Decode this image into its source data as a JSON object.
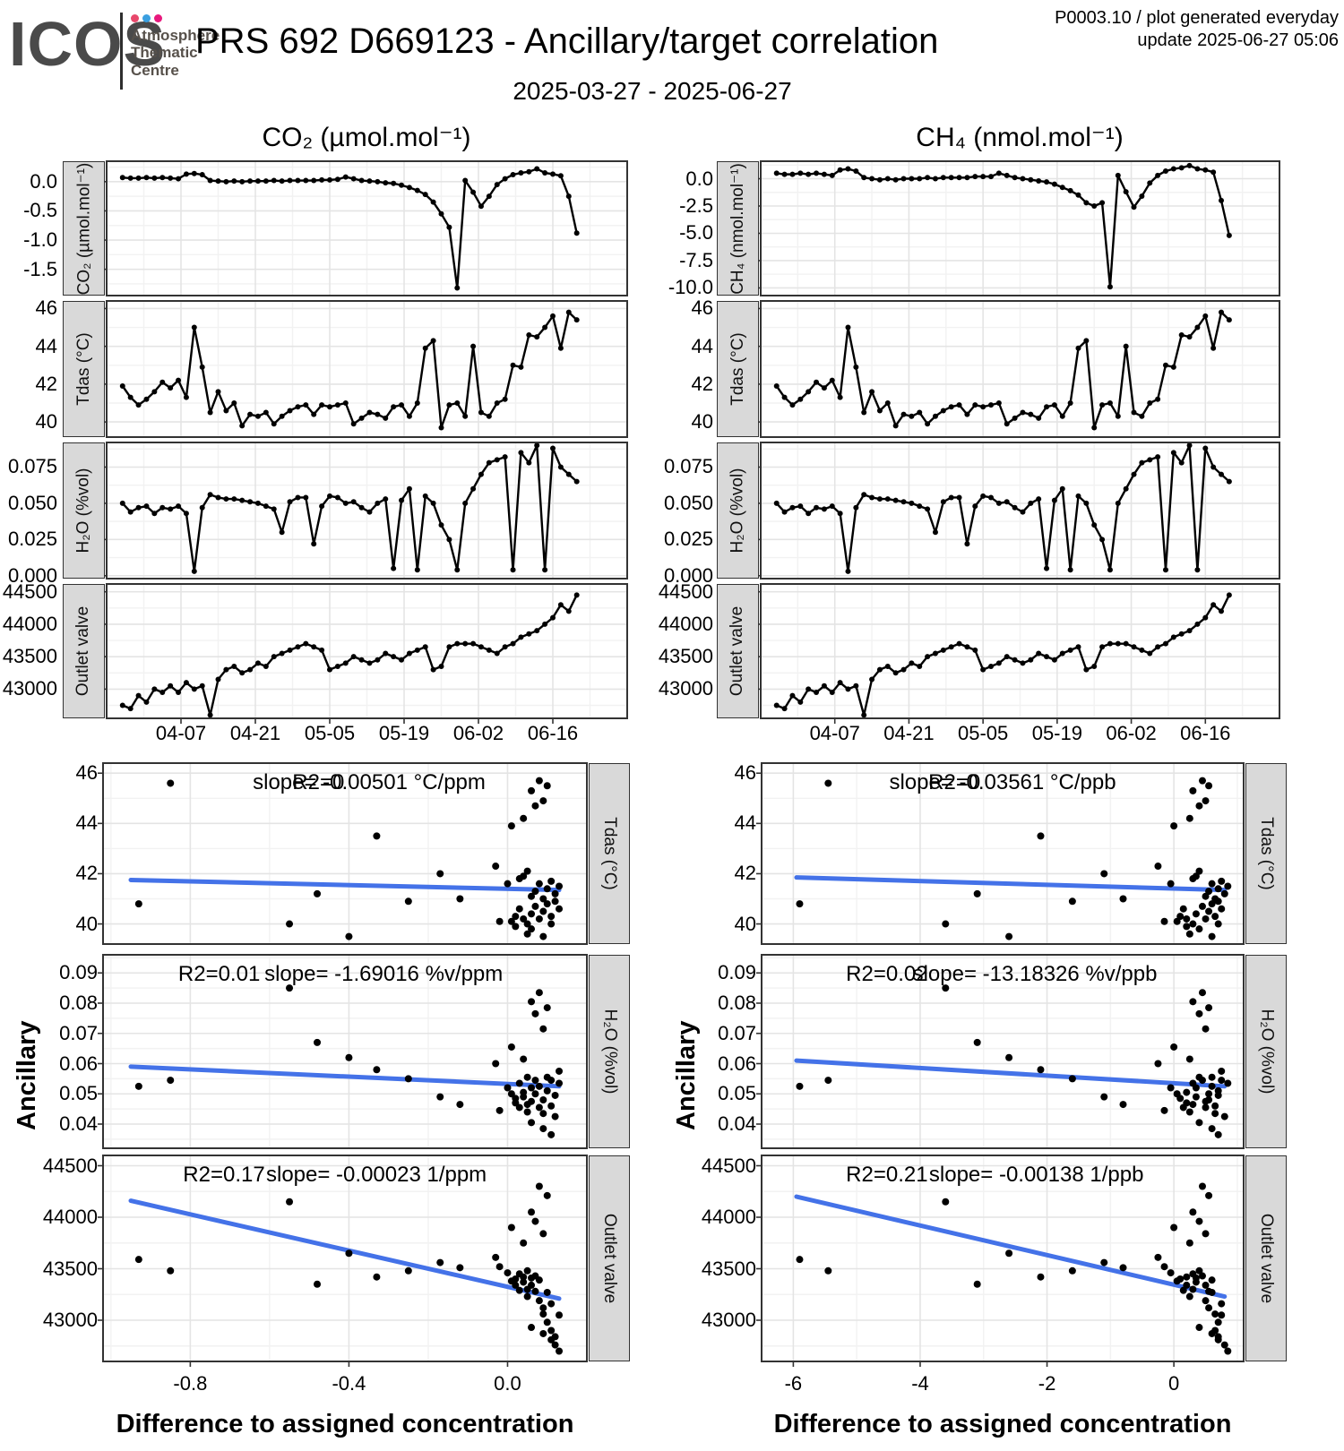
{
  "header": {
    "logo_text": "ICOS",
    "logo_sub": [
      "Atmosphere",
      "Thematic",
      "Centre"
    ],
    "logo_dot_colors": [
      "#e8486b",
      "#3a9fe0",
      "#e8197d"
    ],
    "title": "PRS 692 D669123 - Ancillary/target correlation",
    "meta_line1": "P0003.10 / plot generated everyday",
    "meta_line2": "update  2025-06-27 05:06",
    "date_range": "2025-03-27 - 2025-06-27"
  },
  "titles": {
    "left_column": "CO₂ (µmol.mol⁻¹)",
    "right_column": "CH₄ (nmol.mol⁻¹)",
    "scatter_y_axis": "Ancillary",
    "scatter_x_axis": "Difference to assigned concentration"
  },
  "colors": {
    "regression_line": "#4472e8",
    "series": "#000000",
    "strip_bg": "#d9d9d9",
    "grid_major": "#e4e4e4",
    "grid_minor": "#f2f2f2",
    "frame": "#333333"
  },
  "chart_data": {
    "type": [
      "line",
      "scatter"
    ],
    "time_x": {
      "lim": [
        -3,
        95
      ],
      "ticks": [
        11,
        25,
        39,
        53,
        67,
        81
      ],
      "tick_labels": [
        "04-07",
        "04-21",
        "05-05",
        "05-19",
        "06-02",
        "06-16"
      ],
      "minor": [
        4,
        18,
        32,
        46,
        60,
        74,
        88
      ]
    },
    "series": {
      "days": [
        0,
        1.5,
        3,
        4.5,
        6,
        7.5,
        9,
        10.5,
        12,
        13.5,
        15,
        16.5,
        18,
        19.5,
        21,
        22.5,
        24,
        25.5,
        27,
        28.5,
        30,
        31.5,
        33,
        34.5,
        36,
        37.5,
        39,
        40.5,
        42,
        43.5,
        45,
        46.5,
        48,
        49.5,
        51,
        52.5,
        54,
        55.5,
        57,
        58.5,
        60,
        61.5,
        63,
        64.5,
        66,
        67.5,
        69,
        70.5,
        72,
        73.5,
        75,
        76.5,
        78,
        79.5,
        81,
        82.5,
        84,
        85.5
      ],
      "co2": [
        0.07,
        0.06,
        0.06,
        0.07,
        0.06,
        0.07,
        0.06,
        0.05,
        0.13,
        0.14,
        0.12,
        0.02,
        0.01,
        0.0,
        0.01,
        0.0,
        0.01,
        0.01,
        0.01,
        0.02,
        0.01,
        0.02,
        0.02,
        0.02,
        0.02,
        0.03,
        0.03,
        0.04,
        0.08,
        0.05,
        0.02,
        0.01,
        0.0,
        -0.02,
        -0.03,
        -0.06,
        -0.1,
        -0.15,
        -0.22,
        -0.35,
        -0.55,
        -0.78,
        -1.82,
        0.02,
        -0.18,
        -0.42,
        -0.25,
        -0.05,
        0.05,
        0.12,
        0.15,
        0.17,
        0.22,
        0.15,
        0.13,
        0.1,
        -0.25,
        -0.88
      ],
      "ch4": [
        0.5,
        0.4,
        0.4,
        0.5,
        0.4,
        0.5,
        0.4,
        0.3,
        0.8,
        0.9,
        0.7,
        0.1,
        0.0,
        -0.1,
        0.0,
        -0.1,
        0.0,
        0.0,
        0.0,
        0.1,
        0.0,
        0.1,
        0.1,
        0.1,
        0.1,
        0.2,
        0.2,
        0.2,
        0.5,
        0.3,
        0.1,
        0.0,
        -0.1,
        -0.2,
        -0.3,
        -0.5,
        -0.8,
        -1.1,
        -1.5,
        -2.2,
        -2.5,
        -2.2,
        -9.9,
        0.3,
        -1.2,
        -2.6,
        -1.6,
        -0.4,
        0.3,
        0.7,
        0.9,
        1.0,
        1.2,
        0.9,
        0.8,
        0.6,
        -2.0,
        -5.2
      ],
      "tdas": [
        41.9,
        41.3,
        40.9,
        41.2,
        41.6,
        42.1,
        41.8,
        42.2,
        41.3,
        45.0,
        42.9,
        40.5,
        41.6,
        40.6,
        41.0,
        39.8,
        40.4,
        40.3,
        40.5,
        39.9,
        40.3,
        40.6,
        40.8,
        40.9,
        40.4,
        40.9,
        40.8,
        40.9,
        41.0,
        39.9,
        40.2,
        40.5,
        40.4,
        40.2,
        40.8,
        40.9,
        40.3,
        41.0,
        43.9,
        44.3,
        39.7,
        40.9,
        41.0,
        40.3,
        44.0,
        40.5,
        40.3,
        41.0,
        41.2,
        43.0,
        42.9,
        44.6,
        44.5,
        45.0,
        45.6,
        43.9,
        45.8,
        45.4
      ],
      "h2o": [
        0.05,
        0.044,
        0.047,
        0.048,
        0.043,
        0.047,
        0.046,
        0.048,
        0.043,
        0.003,
        0.047,
        0.056,
        0.054,
        0.053,
        0.053,
        0.052,
        0.051,
        0.05,
        0.048,
        0.046,
        0.03,
        0.051,
        0.054,
        0.054,
        0.022,
        0.048,
        0.055,
        0.054,
        0.05,
        0.051,
        0.047,
        0.044,
        0.05,
        0.053,
        0.005,
        0.052,
        0.06,
        0.004,
        0.055,
        0.05,
        0.035,
        0.025,
        0.004,
        0.05,
        0.06,
        0.07,
        0.078,
        0.08,
        0.082,
        0.004,
        0.085,
        0.078,
        0.09,
        0.004,
        0.088,
        0.075,
        0.07,
        0.065
      ],
      "valve": [
        42750,
        42700,
        42900,
        42800,
        43000,
        42950,
        43050,
        42950,
        43100,
        43000,
        43050,
        42600,
        43150,
        43300,
        43350,
        43250,
        43300,
        43400,
        43350,
        43500,
        43550,
        43600,
        43650,
        43700,
        43650,
        43600,
        43300,
        43350,
        43400,
        43500,
        43450,
        43400,
        43450,
        43550,
        43500,
        43450,
        43550,
        43600,
        43650,
        43300,
        43350,
        43650,
        43700,
        43700,
        43700,
        43650,
        43600,
        43550,
        43650,
        43700,
        43800,
        43850,
        43900,
        44000,
        44100,
        44300,
        44200,
        44450
      ]
    },
    "ts_panels": [
      {
        "kind": "ts",
        "col": 0,
        "row": 0,
        "ykey": "co2",
        "strip": "CO₂ (µmol.mol⁻¹)",
        "ylim": [
          -1.95,
          0.35
        ],
        "yticks": [
          0,
          -0.5,
          -1,
          -1.5
        ],
        "ylabels": [
          "0.0",
          "-0.5",
          "-1.0",
          "-1.5"
        ]
      },
      {
        "kind": "ts",
        "col": 0,
        "row": 1,
        "ykey": "tdas",
        "strip": "Tdas (°C)",
        "ylim": [
          39.2,
          46.4
        ],
        "yticks": [
          46,
          44,
          42,
          40
        ],
        "ylabels": [
          "46",
          "44",
          "42",
          "40"
        ]
      },
      {
        "kind": "ts",
        "col": 0,
        "row": 2,
        "ykey": "h2o",
        "strip": "H₂O (%vol)",
        "ylim": [
          -0.002,
          0.092
        ],
        "yticks": [
          0.075,
          0.05,
          0.025,
          0
        ],
        "ylabels": [
          "0.075",
          "0.050",
          "0.025",
          "0.000"
        ]
      },
      {
        "kind": "ts",
        "col": 0,
        "row": 3,
        "ykey": "valve",
        "strip": "Outlet valve",
        "ylim": [
          42550,
          44620
        ],
        "yticks": [
          44500,
          44000,
          43500,
          43000
        ],
        "ylabels": [
          "44500",
          "44000",
          "43500",
          "43000"
        ]
      },
      {
        "kind": "ts",
        "col": 1,
        "row": 0,
        "ykey": "ch4",
        "strip": "CH₄ (nmol.mol⁻¹)",
        "ylim": [
          -10.7,
          1.6
        ],
        "yticks": [
          0,
          -2.5,
          -5,
          -7.5,
          -10
        ],
        "ylabels": [
          "0.0",
          "-2.5",
          "-5.0",
          "-7.5",
          "-10.0"
        ]
      },
      {
        "kind": "ts",
        "col": 1,
        "row": 1,
        "ykey": "tdas",
        "strip": "Tdas (°C)",
        "ylim": [
          39.2,
          46.4
        ],
        "yticks": [
          46,
          44,
          42,
          40
        ],
        "ylabels": [
          "46",
          "44",
          "42",
          "40"
        ]
      },
      {
        "kind": "ts",
        "col": 1,
        "row": 2,
        "ykey": "h2o",
        "strip": "H₂O (%vol)",
        "ylim": [
          -0.002,
          0.092
        ],
        "yticks": [
          0.075,
          0.05,
          0.025,
          0
        ],
        "ylabels": [
          "0.075",
          "0.050",
          "0.025",
          "0.000"
        ]
      },
      {
        "kind": "ts",
        "col": 1,
        "row": 3,
        "ykey": "valve",
        "strip": "Outlet valve",
        "ylim": [
          42550,
          44620
        ],
        "yticks": [
          44500,
          44000,
          43500,
          43000
        ],
        "ylabels": [
          "44500",
          "44000",
          "43500",
          "43000"
        ]
      }
    ],
    "scatter_x": [
      {
        "lim": [
          -1.02,
          0.2
        ],
        "ticks": [
          -0.8,
          -0.4,
          0
        ],
        "tick_labels": [
          "-0.8",
          "-0.4",
          "0.0"
        ],
        "minor": [
          -1.0,
          -0.6,
          -0.2,
          0.2
        ]
      },
      {
        "lim": [
          -6.5,
          1.1
        ],
        "ticks": [
          -6,
          -4,
          -2,
          0
        ],
        "tick_labels": [
          "-6",
          "-4",
          "-2",
          "0"
        ],
        "minor": [
          -5,
          -3,
          -1,
          1
        ]
      }
    ],
    "records": {
      "diff_co2": [
        -0.93,
        -0.85,
        -0.55,
        -0.48,
        -0.4,
        -0.33,
        -0.25,
        -0.17,
        -0.12,
        0.0,
        0.01,
        0.02,
        0.02,
        0.03,
        0.03,
        0.04,
        0.04,
        0.05,
        0.05,
        0.05,
        0.06,
        0.06,
        0.06,
        0.07,
        0.07,
        0.07,
        0.08,
        0.08,
        0.08,
        0.09,
        0.09,
        0.09,
        0.1,
        0.1,
        0.1,
        0.11,
        0.11,
        0.12,
        0.12,
        0.13,
        0.13,
        -0.02,
        -0.03,
        0.01,
        0.04,
        0.06,
        0.09,
        0.11
      ],
      "diff_ch4": [
        -5.9,
        -5.45,
        -3.6,
        -3.1,
        -2.6,
        -2.1,
        -1.6,
        -1.1,
        -0.8,
        -0.05,
        0.05,
        0.1,
        0.2,
        0.15,
        0.3,
        0.2,
        0.35,
        0.3,
        0.4,
        0.25,
        0.35,
        0.5,
        0.3,
        0.45,
        0.55,
        0.4,
        0.5,
        0.6,
        0.45,
        0.55,
        0.65,
        0.5,
        0.6,
        0.7,
        0.55,
        0.65,
        0.75,
        0.7,
        0.8,
        0.75,
        0.85,
        -0.15,
        -0.25,
        0.0,
        0.25,
        0.4,
        0.6,
        0.7
      ],
      "tdas": [
        40.8,
        45.6,
        40.0,
        41.2,
        39.5,
        43.5,
        40.9,
        42.0,
        41.0,
        41.6,
        40.1,
        40.3,
        39.9,
        40.6,
        41.8,
        40.2,
        41.9,
        40.0,
        42.1,
        39.6,
        40.4,
        41.1,
        45.3,
        40.7,
        41.3,
        44.7,
        40.2,
        41.6,
        45.7,
        40.5,
        41.0,
        44.9,
        40.8,
        41.4,
        45.5,
        40.3,
        41.7,
        40.9,
        41.2,
        40.6,
        41.5,
        40.1,
        42.3,
        43.9,
        44.2,
        39.8,
        39.5,
        40.0
      ],
      "h2o": [
        0.0525,
        0.0545,
        0.085,
        0.067,
        0.062,
        0.058,
        0.055,
        0.049,
        0.0465,
        0.052,
        0.05,
        0.0485,
        0.047,
        0.0455,
        0.0535,
        0.0505,
        0.049,
        0.0465,
        0.0555,
        0.044,
        0.052,
        0.0475,
        0.0805,
        0.0545,
        0.05,
        0.0765,
        0.0455,
        0.0525,
        0.0835,
        0.048,
        0.0435,
        0.0715,
        0.0555,
        0.051,
        0.0785,
        0.046,
        0.0545,
        0.0495,
        0.0425,
        0.0575,
        0.0535,
        0.0445,
        0.06,
        0.0655,
        0.0615,
        0.0405,
        0.0385,
        0.0365
      ],
      "valve": [
        43590,
        43480,
        44150,
        43350,
        43650,
        43420,
        43480,
        43560,
        43510,
        43460,
        43380,
        43400,
        43340,
        43290,
        43450,
        43420,
        43370,
        43300,
        43480,
        43230,
        43410,
        43340,
        44050,
        43430,
        43280,
        43960,
        43190,
        43390,
        44300,
        43120,
        43060,
        43840,
        43270,
        42980,
        44210,
        42900,
        43160,
        42840,
        42760,
        43050,
        42700,
        43520,
        43610,
        43900,
        43750,
        42930,
        42870,
        42810
      ]
    },
    "sc_panels": [
      {
        "kind": "sc",
        "col": 0,
        "row": 0,
        "ykey": "tdas",
        "strip": "Tdas (°C)",
        "ylim": [
          39.2,
          46.4
        ],
        "yticks": [
          46,
          44,
          42,
          40
        ],
        "ylabels": [
          "46",
          "44",
          "42",
          "40"
        ],
        "line": [
          -0.95,
          41.75,
          0.13,
          41.35
        ],
        "ann": [
          {
            "text": "R2=0",
            "cx": 0.445
          },
          {
            "text": "slope= -0.00501 °C/ppm",
            "cx": 0.55
          }
        ]
      },
      {
        "kind": "sc",
        "col": 0,
        "row": 1,
        "ykey": "h2o",
        "strip": "H₂O (%vol)",
        "ylim": [
          0.032,
          0.096
        ],
        "yticks": [
          0.09,
          0.08,
          0.07,
          0.06,
          0.05,
          0.04
        ],
        "ylabels": [
          "0.09",
          "0.08",
          "0.07",
          "0.06",
          "0.05",
          "0.04"
        ],
        "line": [
          -0.95,
          0.059,
          0.13,
          0.0525
        ],
        "ann": [
          {
            "text": "R2=0.01",
            "cx": 0.24
          },
          {
            "text": "slope= -1.69016 %v/ppm",
            "cx": 0.58
          }
        ]
      },
      {
        "kind": "sc",
        "col": 0,
        "row": 2,
        "ykey": "valve",
        "strip": "Outlet valve",
        "ylim": [
          42600,
          44600
        ],
        "yticks": [
          44500,
          44000,
          43500,
          43000
        ],
        "ylabels": [
          "44500",
          "44000",
          "43500",
          "43000"
        ],
        "line": [
          -0.95,
          44160,
          0.13,
          43210
        ],
        "ann": [
          {
            "text": "R2=0.17",
            "cx": 0.25
          },
          {
            "text": "slope= -0.00023 1/ppm",
            "cx": 0.565
          }
        ]
      },
      {
        "kind": "sc",
        "col": 1,
        "row": 0,
        "ykey": "tdas",
        "strip": "Tdas (°C)",
        "ylim": [
          39.2,
          46.4
        ],
        "yticks": [
          46,
          44,
          42,
          40
        ],
        "ylabels": [
          "46",
          "44",
          "42",
          "40"
        ],
        "line": [
          -5.95,
          41.85,
          0.8,
          41.35
        ],
        "ann": [
          {
            "text": "R2=0",
            "cx": 0.4
          },
          {
            "text": "slope= -0.03561 °C/ppb",
            "cx": 0.5
          }
        ]
      },
      {
        "kind": "sc",
        "col": 1,
        "row": 1,
        "ykey": "h2o",
        "strip": "H₂O (%vol)",
        "ylim": [
          0.032,
          0.096
        ],
        "yticks": [
          0.09,
          0.08,
          0.07,
          0.06,
          0.05,
          0.04
        ],
        "ylabels": [
          "0.09",
          "0.08",
          "0.07",
          "0.06",
          "0.05",
          "0.04"
        ],
        "line": [
          -5.95,
          0.061,
          0.8,
          0.0525
        ],
        "ann": [
          {
            "text": "R2=0.02",
            "cx": 0.26
          },
          {
            "text": "slope= -13.18326 %v/ppb",
            "cx": 0.567
          }
        ]
      },
      {
        "kind": "sc",
        "col": 1,
        "row": 2,
        "ykey": "valve",
        "strip": "Outlet valve",
        "ylim": [
          42600,
          44600
        ],
        "yticks": [
          44500,
          44000,
          43500,
          43000
        ],
        "ylabels": [
          "44500",
          "44000",
          "43500",
          "43000"
        ],
        "line": [
          -5.95,
          44200,
          0.8,
          43230
        ],
        "ann": [
          {
            "text": "R2=0.21",
            "cx": 0.26
          },
          {
            "text": "slope= -0.00138 1/ppb",
            "cx": 0.57
          }
        ]
      }
    ]
  }
}
